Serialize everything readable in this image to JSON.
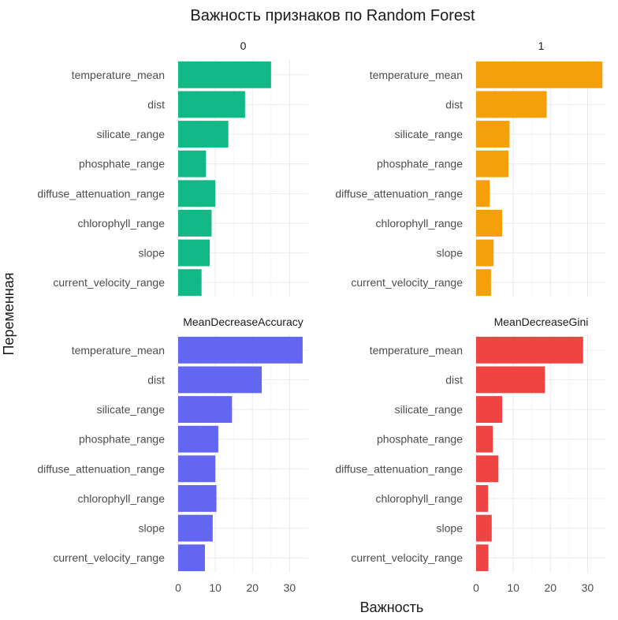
{
  "chart_data": {
    "type": "bar",
    "orientation": "horizontal",
    "facet": true,
    "title": "Важность признаков по Random Forest",
    "xlabel": "Важность",
    "ylabel": "Переменная",
    "categories": [
      "temperature_mean",
      "dist",
      "silicate_range",
      "phosphate_range",
      "diffuse_attenuation_range",
      "chlorophyll_range",
      "slope",
      "current_velocity_range"
    ],
    "xlim": [
      0,
      35
    ],
    "x_ticks": [
      0,
      10,
      20,
      30
    ],
    "grid": true,
    "legend": "none",
    "series": [
      {
        "name": "0",
        "color": "#12b886",
        "values": [
          25.0,
          18.0,
          13.5,
          7.5,
          10.0,
          9.0,
          8.5,
          6.3
        ]
      },
      {
        "name": "1",
        "color": "#f59f0a",
        "values": [
          34.0,
          19.0,
          9.0,
          8.7,
          3.7,
          7.0,
          4.7,
          4.0
        ]
      },
      {
        "name": "MeanDecreaseAccuracy",
        "color": "#6366f1",
        "values": [
          33.5,
          22.5,
          14.5,
          10.8,
          10.0,
          10.3,
          9.3,
          7.2
        ]
      },
      {
        "name": "MeanDecreaseGini",
        "color": "#ef4444",
        "values": [
          28.8,
          18.5,
          7.0,
          4.5,
          6.0,
          3.2,
          4.2,
          3.3
        ]
      }
    ]
  }
}
